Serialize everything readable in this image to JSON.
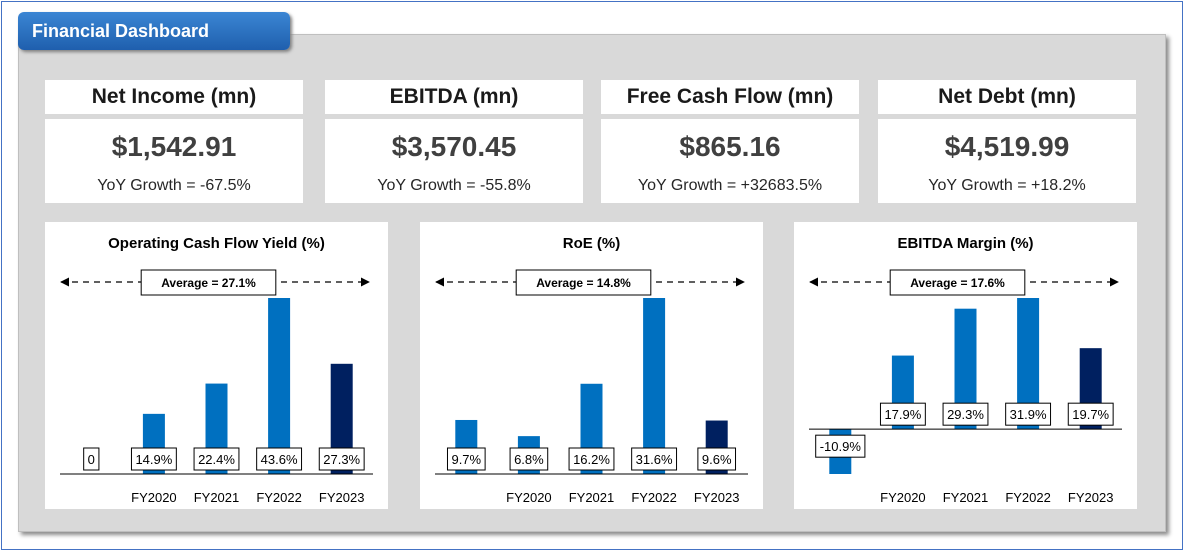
{
  "header": {
    "title": "Financial Dashboard"
  },
  "kpis": [
    {
      "title": "Net Income (mn)",
      "value": "$1,542.91",
      "growth": "YoY Growth = -67.5%"
    },
    {
      "title": "EBITDA (mn)",
      "value": "$3,570.45",
      "growth": "YoY Growth = -55.8%"
    },
    {
      "title": "Free Cash Flow (mn)",
      "value": "$865.16",
      "growth": "YoY Growth = +32683.5%"
    },
    {
      "title": "Net Debt (mn)",
      "value": "$4,519.99",
      "growth": "YoY Growth = +18.2%"
    }
  ],
  "chart_data": [
    {
      "type": "bar",
      "title": "Operating Cash Flow Yield (%)",
      "annotation": "Average = 27.1%",
      "categories": [
        null,
        "FY2020",
        "FY2021",
        "FY2022",
        "FY2023"
      ],
      "values": [
        0,
        14.9,
        22.4,
        43.6,
        27.3
      ],
      "value_labels": [
        "0",
        "14.9%",
        "22.4%",
        "43.6%",
        "27.3%"
      ],
      "colors": [
        "#0070c0",
        "#0070c0",
        "#0070c0",
        "#0070c0",
        "#002060"
      ]
    },
    {
      "type": "bar",
      "title": "RoE (%)",
      "annotation": "Average = 14.8%",
      "categories": [
        null,
        "FY2020",
        "FY2021",
        "FY2022",
        "FY2023"
      ],
      "values": [
        9.7,
        6.8,
        16.2,
        31.6,
        9.6
      ],
      "value_labels": [
        "9.7%",
        "6.8%",
        "16.2%",
        "31.6%",
        "9.6%"
      ],
      "colors": [
        "#0070c0",
        "#0070c0",
        "#0070c0",
        "#0070c0",
        "#002060"
      ]
    },
    {
      "type": "bar",
      "title": "EBITDA Margin (%)",
      "annotation": "Average = 17.6%",
      "categories": [
        null,
        "FY2020",
        "FY2021",
        "FY2022",
        "FY2023"
      ],
      "values": [
        -10.9,
        17.9,
        29.3,
        31.9,
        19.7
      ],
      "value_labels": [
        "-10.9%",
        "17.9%",
        "29.3%",
        "31.9%",
        "19.7%"
      ],
      "colors": [
        "#0070c0",
        "#0070c0",
        "#0070c0",
        "#0070c0",
        "#002060"
      ]
    }
  ]
}
